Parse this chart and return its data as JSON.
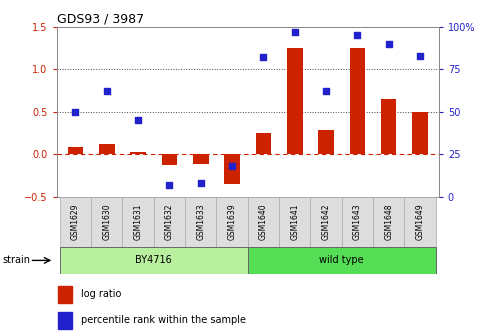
{
  "title": "GDS93 / 3987",
  "samples": [
    "GSM1629",
    "GSM1630",
    "GSM1631",
    "GSM1632",
    "GSM1633",
    "GSM1639",
    "GSM1640",
    "GSM1641",
    "GSM1642",
    "GSM1643",
    "GSM1648",
    "GSM1649"
  ],
  "log_ratio": [
    0.08,
    0.12,
    0.03,
    -0.13,
    -0.12,
    -0.35,
    0.25,
    1.25,
    0.28,
    1.25,
    0.65,
    0.5
  ],
  "percentile_rank_raw": [
    50,
    62,
    45,
    7,
    8,
    18,
    82,
    97,
    62,
    95,
    90,
    83
  ],
  "strain_groups": [
    {
      "label": "BY4716",
      "start": 0,
      "end": 6,
      "color": "#b8f0a0"
    },
    {
      "label": "wild type",
      "start": 6,
      "end": 12,
      "color": "#55dd55"
    }
  ],
  "ylim_left": [
    -0.5,
    1.5
  ],
  "ylim_right": [
    0,
    100
  ],
  "yticks_left": [
    -0.5,
    0.0,
    0.5,
    1.0,
    1.5
  ],
  "yticks_right": [
    0,
    25,
    50,
    75,
    100
  ],
  "bar_color": "#cc2200",
  "dot_color": "#2222cc",
  "hline_color": "#cc2200",
  "dot_line_color": "#444444",
  "background_color": "#ffffff",
  "strain_label": "strain",
  "legend_log_ratio": "log ratio",
  "legend_percentile": "percentile rank within the sample",
  "bar_width": 0.5
}
